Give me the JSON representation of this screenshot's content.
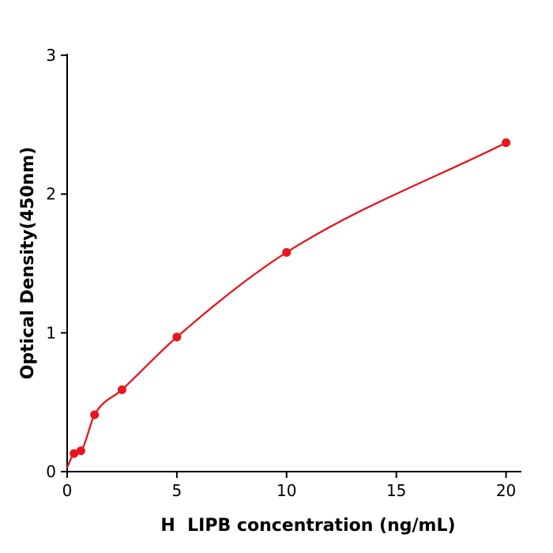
{
  "chart_data": {
    "type": "scatter",
    "title": "",
    "xlabel": "H  LIPB concentration (ng/mL)",
    "ylabel": "Optical Density(450nm)",
    "x": [
      0.313,
      0.625,
      1.25,
      2.5,
      5,
      10,
      20
    ],
    "y": [
      0.13,
      0.15,
      0.41,
      0.59,
      0.97,
      1.58,
      2.37
    ],
    "curve_start": {
      "x": 0,
      "y": 0.03
    },
    "xlim": [
      0,
      20.7
    ],
    "ylim": [
      0,
      3
    ],
    "xticks": [
      0,
      5,
      10,
      15,
      20
    ],
    "yticks": [
      0,
      1,
      2,
      3
    ],
    "series_color": "#e8151c",
    "axis_color": "#000000",
    "grid": false,
    "legend": null
  }
}
